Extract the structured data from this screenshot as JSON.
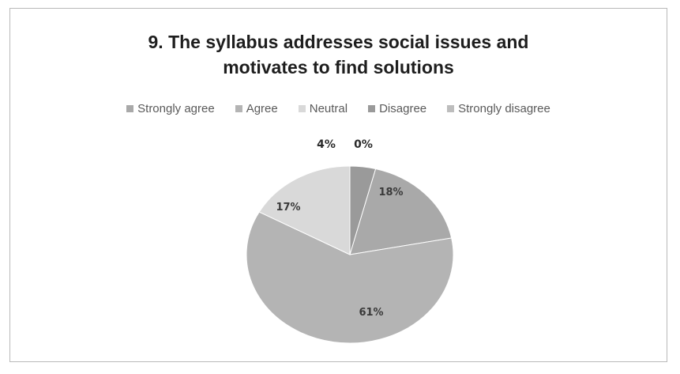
{
  "chart_data": {
    "type": "pie",
    "title_line1": "9. The syllabus addresses social issues and",
    "title_line2": "motivates to find solutions",
    "legend_position": "top",
    "slices": [
      {
        "name": "Strongly agree",
        "value": 18,
        "label": "18%",
        "color": "#a9a9a9"
      },
      {
        "name": "Agree",
        "value": 61,
        "label": "61%",
        "color": "#b4b4b4"
      },
      {
        "name": "Neutral",
        "value": 17,
        "label": "17%",
        "color": "#d9d9d9"
      },
      {
        "name": "Disagree",
        "value": 4,
        "label": "4%",
        "color": "#9a9a9a"
      },
      {
        "name": "Strongly disagree",
        "value": 0,
        "label": "0%",
        "color": "#bdbdbd"
      }
    ]
  }
}
